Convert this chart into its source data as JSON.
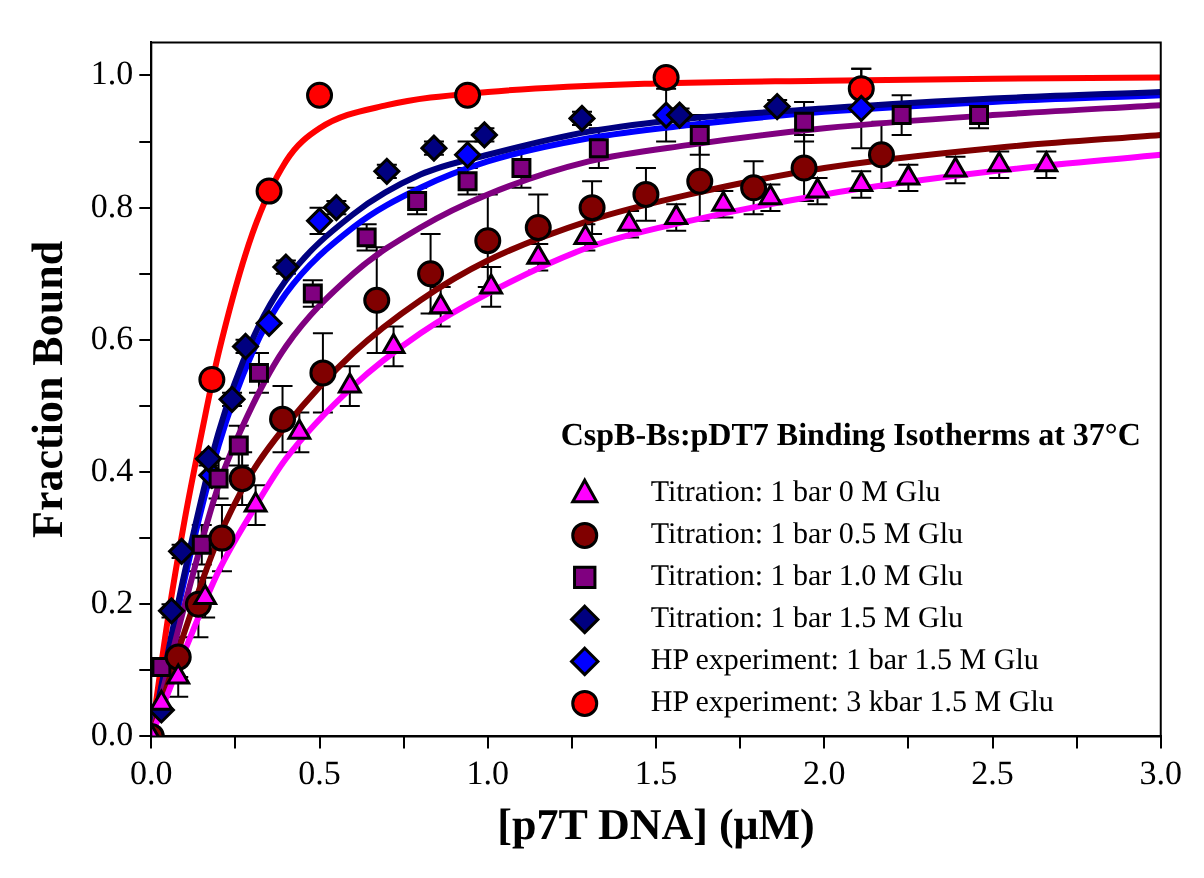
{
  "chart_data": {
    "type": "scatter",
    "xlabel": "[p7T DNA] (μM)",
    "ylabel": "Fraction Bound",
    "legend_title": "CspB-Bs:pDT7 Binding Isotherms at 37°C",
    "legend": "bottom right",
    "grid": false,
    "xlim": [
      0,
      3
    ],
    "ylim": [
      0,
      1.05
    ],
    "xticks": [
      {
        "value": 0,
        "label": "0.0"
      },
      {
        "value": 0.25,
        "label": null
      },
      {
        "value": 0.5,
        "label": "0.5"
      },
      {
        "value": 0.75,
        "label": null
      },
      {
        "value": 1,
        "label": "1.0"
      },
      {
        "value": 1.25,
        "label": null
      },
      {
        "value": 1.5,
        "label": "1.5"
      },
      {
        "value": 1.75,
        "label": null
      },
      {
        "value": 2,
        "label": "2.0"
      },
      {
        "value": 2.25,
        "label": null
      },
      {
        "value": 2.5,
        "label": "2.5"
      },
      {
        "value": 2.75,
        "label": null
      },
      {
        "value": 3,
        "label": "3.0"
      }
    ],
    "yticks": [
      {
        "value": 0,
        "label": "0.0"
      },
      {
        "value": 0.1,
        "label": null
      },
      {
        "value": 0.2,
        "label": "0.2"
      },
      {
        "value": 0.3,
        "label": null
      },
      {
        "value": 0.4,
        "label": "0.4"
      },
      {
        "value": 0.5,
        "label": null
      },
      {
        "value": 0.6,
        "label": "0.6"
      },
      {
        "value": 0.7,
        "label": null
      },
      {
        "value": 0.8,
        "label": "0.8"
      },
      {
        "value": 0.9,
        "label": null
      },
      {
        "value": 1,
        "label": "1.0"
      }
    ],
    "series": [
      {
        "type": "line",
        "color": "#ff00ff",
        "x": [
          0,
          0.1,
          0.2,
          0.3,
          0.4,
          0.6,
          0.8,
          1.0,
          1.3,
          1.6,
          2.0,
          2.5,
          3.0
        ],
        "values": [
          0,
          0.13,
          0.25,
          0.34,
          0.42,
          0.53,
          0.61,
          0.67,
          0.74,
          0.78,
          0.82,
          0.855,
          0.88
        ]
      },
      {
        "type": "line",
        "color": "#800000",
        "x": [
          0,
          0.1,
          0.2,
          0.3,
          0.4,
          0.6,
          0.8,
          1.0,
          1.3,
          1.6,
          2.0,
          2.5,
          3.0
        ],
        "values": [
          0,
          0.16,
          0.3,
          0.4,
          0.47,
          0.58,
          0.66,
          0.72,
          0.78,
          0.82,
          0.86,
          0.89,
          0.91
        ]
      },
      {
        "type": "line",
        "color": "#800080",
        "x": [
          0,
          0.1,
          0.2,
          0.3,
          0.4,
          0.6,
          0.8,
          1.0,
          1.3,
          1.6,
          2.0,
          2.5,
          3.0
        ],
        "values": [
          0,
          0.2,
          0.38,
          0.5,
          0.59,
          0.7,
          0.77,
          0.82,
          0.87,
          0.895,
          0.92,
          0.94,
          0.955
        ]
      },
      {
        "type": "line",
        "color": "#000080",
        "x": [
          0,
          0.1,
          0.2,
          0.3,
          0.4,
          0.6,
          0.8,
          1.0,
          1.3,
          1.6,
          2.0,
          2.5,
          3.0
        ],
        "values": [
          0,
          0.25,
          0.46,
          0.6,
          0.69,
          0.79,
          0.85,
          0.88,
          0.915,
          0.935,
          0.95,
          0.965,
          0.975
        ]
      },
      {
        "type": "line",
        "color": "#0000ff",
        "x": [
          0,
          0.1,
          0.2,
          0.3,
          0.4,
          0.6,
          0.8,
          1.0,
          1.3,
          1.6,
          2.0,
          2.5,
          3.0
        ],
        "values": [
          0,
          0.24,
          0.44,
          0.58,
          0.67,
          0.77,
          0.83,
          0.87,
          0.905,
          0.925,
          0.945,
          0.96,
          0.97
        ]
      },
      {
        "type": "line",
        "color": "#ff0000",
        "x": [
          0,
          0.05,
          0.1,
          0.15,
          0.2,
          0.3,
          0.4,
          0.5,
          0.7,
          1.0,
          1.5,
          2.0,
          2.5,
          3.0
        ],
        "values": [
          0,
          0.18,
          0.33,
          0.46,
          0.58,
          0.76,
          0.87,
          0.92,
          0.955,
          0.975,
          0.988,
          0.992,
          0.995,
          0.997
        ]
      },
      {
        "type": "scatter",
        "name": "Titration: 1 bar 0 M Glu",
        "marker": "triangle",
        "color": "#ff00ff",
        "x": [
          0,
          0.03,
          0.08,
          0.16,
          0.31,
          0.44,
          0.59,
          0.72,
          0.86,
          1.01,
          1.15,
          1.29,
          1.42,
          1.56,
          1.7,
          1.84,
          1.98,
          2.11,
          2.25,
          2.39,
          2.52,
          2.66
        ],
        "values": [
          0,
          0.05,
          0.09,
          0.21,
          0.35,
          0.46,
          0.53,
          0.59,
          0.65,
          0.68,
          0.725,
          0.755,
          0.775,
          0.785,
          0.805,
          0.815,
          0.825,
          0.835,
          0.845,
          0.857,
          0.865,
          0.865
        ],
        "errors": [
          null,
          null,
          0.03,
          0.03,
          0.03,
          0.03,
          0.03,
          0.03,
          0.03,
          0.03,
          0.02,
          0.02,
          0.02,
          0.02,
          0.02,
          0.02,
          0.02,
          0.02,
          0.02,
          0.02,
          0.02,
          0.02
        ]
      },
      {
        "type": "scatter",
        "name": "Titration: 1 bar 0.5 M Glu",
        "marker": "circle",
        "color": "#800000",
        "x": [
          0,
          0.08,
          0.14,
          0.21,
          0.27,
          0.39,
          0.51,
          0.67,
          0.83,
          1.0,
          1.15,
          1.31,
          1.47,
          1.63,
          1.79,
          1.94,
          2.17
        ],
        "values": [
          0,
          0.12,
          0.2,
          0.3,
          0.39,
          0.48,
          0.55,
          0.66,
          0.7,
          0.75,
          0.77,
          0.8,
          0.82,
          0.84,
          0.83,
          0.86,
          0.88
        ],
        "errors": [
          null,
          0.03,
          0.05,
          0.05,
          0.04,
          0.05,
          0.06,
          0.08,
          0.06,
          0.07,
          0.05,
          0.04,
          0.04,
          0.06,
          0.04,
          0.05,
          0.05
        ]
      },
      {
        "type": "scatter",
        "name": "Titration: 1 bar 1.0 M Glu",
        "marker": "square",
        "color": "#800080",
        "x": [
          0.03,
          0.15,
          0.2,
          0.26,
          0.32,
          0.48,
          0.64,
          0.79,
          0.94,
          1.1,
          1.33,
          1.63,
          1.94,
          2.23,
          2.46
        ],
        "values": [
          0.105,
          0.29,
          0.39,
          0.44,
          0.55,
          0.67,
          0.755,
          0.81,
          0.84,
          0.86,
          0.89,
          0.91,
          0.93,
          0.94,
          0.94
        ],
        "errors": [
          null,
          0.03,
          0.03,
          0.03,
          0.03,
          0.02,
          0.02,
          0.02,
          0.02,
          0.03,
          0.03,
          0.03,
          0.03,
          0.03,
          0.02
        ]
      },
      {
        "type": "scatter",
        "name": "Titration: 1 bar 1.5 M Glu",
        "marker": "diamond",
        "color": "#000080",
        "x": [
          0.03,
          0.06,
          0.09,
          0.17,
          0.24,
          0.28,
          0.4,
          0.55,
          0.7,
          0.84,
          0.99,
          1.28,
          1.57,
          1.86
        ],
        "values": [
          0.04,
          0.19,
          0.28,
          0.42,
          0.51,
          0.59,
          0.71,
          0.8,
          0.855,
          0.89,
          0.91,
          0.935,
          0.94,
          0.953
        ],
        "errors": [
          null,
          0.01,
          0.01,
          0.01,
          0.01,
          0.01,
          0.01,
          0.01,
          0.01,
          0.01,
          0.01,
          0.01,
          0.01,
          0.01
        ]
      },
      {
        "type": "scatter",
        "name": "HP experiment: 1 bar 1.5 M Glu",
        "marker": "diamond",
        "color": "#0000ff",
        "x": [
          0.18,
          0.35,
          0.5,
          0.94,
          1.53,
          2.11
        ],
        "values": [
          0.395,
          0.625,
          0.78,
          0.88,
          0.94,
          0.95
        ],
        "errors": [
          null,
          null,
          0.02,
          0.02,
          0.04,
          0.06
        ]
      },
      {
        "type": "scatter",
        "name": "HP experiment: 3 kbar 1.5 M Glu",
        "marker": "circle",
        "color": "#ff0000",
        "x": [
          0.18,
          0.35,
          0.5,
          0.94,
          1.53,
          2.11
        ],
        "values": [
          0.54,
          0.825,
          0.97,
          0.97,
          0.997,
          0.98
        ],
        "errors": [
          null,
          null,
          null,
          null,
          null,
          0.03
        ]
      }
    ]
  }
}
